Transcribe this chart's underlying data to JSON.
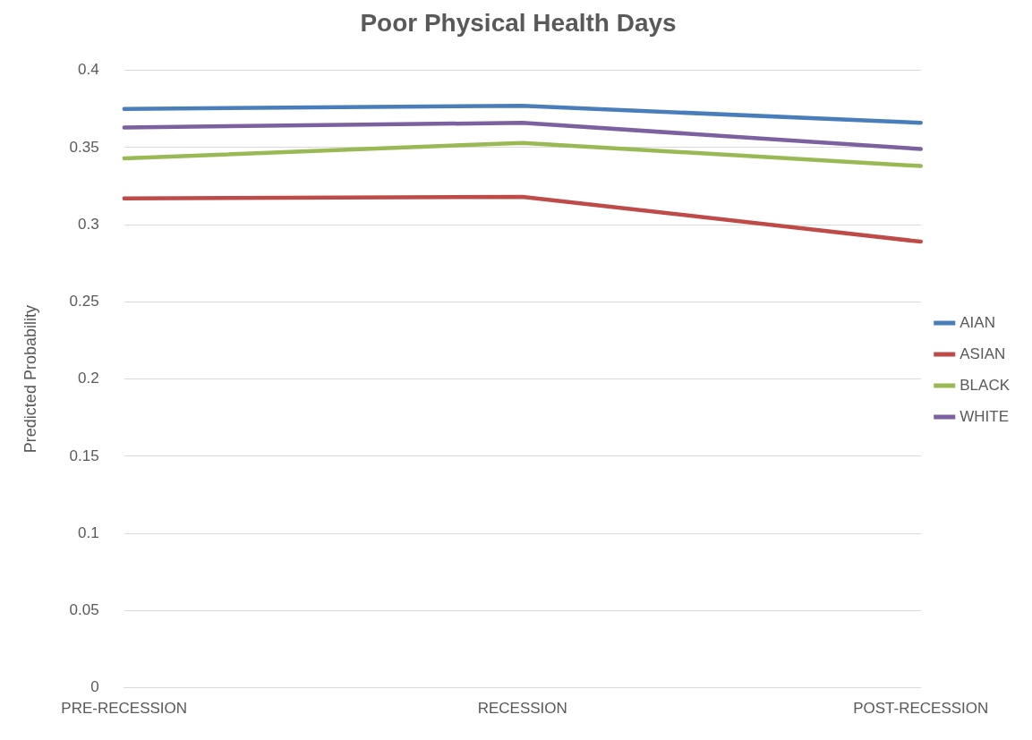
{
  "chart_data": {
    "type": "line",
    "title": "Poor Physical Health Days",
    "ylabel": "Predicted Probability",
    "categories": [
      "PRE-RECESSION",
      "RECESSION",
      "POST-RECESSION"
    ],
    "series": [
      {
        "name": "AIAN",
        "color": "#4a7ebb",
        "values": [
          0.375,
          0.377,
          0.366
        ]
      },
      {
        "name": "ASIAN",
        "color": "#be4b48",
        "values": [
          0.317,
          0.318,
          0.289
        ]
      },
      {
        "name": "BLACK",
        "color": "#98b954",
        "values": [
          0.343,
          0.353,
          0.338
        ]
      },
      {
        "name": "WHITE",
        "color": "#7d60a0",
        "values": [
          0.363,
          0.366,
          0.349
        ]
      }
    ],
    "ylim": [
      0,
      0.4
    ],
    "yticks": [
      0,
      0.05,
      0.1,
      0.15,
      0.2,
      0.25,
      0.3,
      0.35,
      0.4
    ],
    "grid": "y",
    "legend": "right",
    "marker": "none",
    "line_style": "solid"
  }
}
